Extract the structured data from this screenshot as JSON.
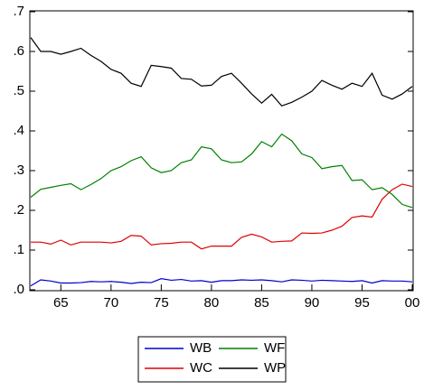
{
  "chart_data": {
    "type": "line",
    "x": [
      1962,
      1963,
      1964,
      1965,
      1966,
      1967,
      1968,
      1969,
      1970,
      1971,
      1972,
      1973,
      1974,
      1975,
      1976,
      1977,
      1978,
      1979,
      1980,
      1981,
      1982,
      1983,
      1984,
      1985,
      1986,
      1987,
      1988,
      1989,
      1990,
      1991,
      1992,
      1993,
      1994,
      1995,
      1996,
      1997,
      1998,
      1999,
      2000
    ],
    "xlim": [
      1962,
      2000
    ],
    "xticks": [
      {
        "value": 1965,
        "label": "65"
      },
      {
        "value": 1970,
        "label": "70"
      },
      {
        "value": 1975,
        "label": "75"
      },
      {
        "value": 1980,
        "label": "80"
      },
      {
        "value": 1985,
        "label": "85"
      },
      {
        "value": 1990,
        "label": "90"
      },
      {
        "value": 1995,
        "label": "95"
      },
      {
        "value": 2000,
        "label": "00"
      }
    ],
    "ylim": [
      0,
      0.7
    ],
    "yticks": [
      {
        "value": 0,
        "label": ".0"
      },
      {
        "value": 0.1,
        "label": ".1"
      },
      {
        "value": 0.2,
        "label": ".2"
      },
      {
        "value": 0.3,
        "label": ".3"
      },
      {
        "value": 0.4,
        "label": ".4"
      },
      {
        "value": 0.5,
        "label": ".5"
      },
      {
        "value": 0.6,
        "label": ".6"
      },
      {
        "value": 0.7,
        "label": ".7"
      }
    ],
    "grid": false,
    "legend": "bottom",
    "series": [
      {
        "name": "WB",
        "color": "#0000cc",
        "values": [
          0.01,
          0.025,
          0.022,
          0.017,
          0.017,
          0.018,
          0.021,
          0.02,
          0.021,
          0.019,
          0.016,
          0.019,
          0.018,
          0.028,
          0.024,
          0.026,
          0.022,
          0.023,
          0.019,
          0.023,
          0.023,
          0.025,
          0.024,
          0.025,
          0.023,
          0.02,
          0.025,
          0.024,
          0.022,
          0.024,
          0.023,
          0.022,
          0.021,
          0.023,
          0.017,
          0.023,
          0.022,
          0.022,
          0.02
        ]
      },
      {
        "name": "WC",
        "color": "#e00000",
        "values": [
          0.12,
          0.12,
          0.115,
          0.125,
          0.113,
          0.12,
          0.12,
          0.12,
          0.118,
          0.122,
          0.137,
          0.135,
          0.113,
          0.116,
          0.117,
          0.12,
          0.12,
          0.103,
          0.11,
          0.11,
          0.11,
          0.132,
          0.14,
          0.133,
          0.12,
          0.122,
          0.123,
          0.143,
          0.142,
          0.143,
          0.15,
          0.16,
          0.182,
          0.186,
          0.183,
          0.228,
          0.252,
          0.266,
          0.26
        ]
      },
      {
        "name": "WF",
        "color": "#008000",
        "values": [
          0.233,
          0.253,
          0.258,
          0.263,
          0.267,
          0.252,
          0.265,
          0.28,
          0.3,
          0.31,
          0.325,
          0.335,
          0.307,
          0.295,
          0.3,
          0.32,
          0.327,
          0.36,
          0.355,
          0.327,
          0.32,
          0.322,
          0.342,
          0.373,
          0.36,
          0.392,
          0.375,
          0.342,
          0.333,
          0.305,
          0.31,
          0.313,
          0.275,
          0.277,
          0.252,
          0.257,
          0.24,
          0.215,
          0.207
        ]
      },
      {
        "name": "WP",
        "color": "#000000",
        "values": [
          0.635,
          0.6,
          0.6,
          0.593,
          0.6,
          0.608,
          0.59,
          0.575,
          0.555,
          0.545,
          0.52,
          0.512,
          0.565,
          0.562,
          0.558,
          0.532,
          0.53,
          0.513,
          0.515,
          0.537,
          0.545,
          0.52,
          0.493,
          0.47,
          0.492,
          0.463,
          0.472,
          0.485,
          0.5,
          0.527,
          0.515,
          0.505,
          0.52,
          0.512,
          0.545,
          0.49,
          0.48,
          0.493,
          0.512
        ]
      }
    ]
  }
}
